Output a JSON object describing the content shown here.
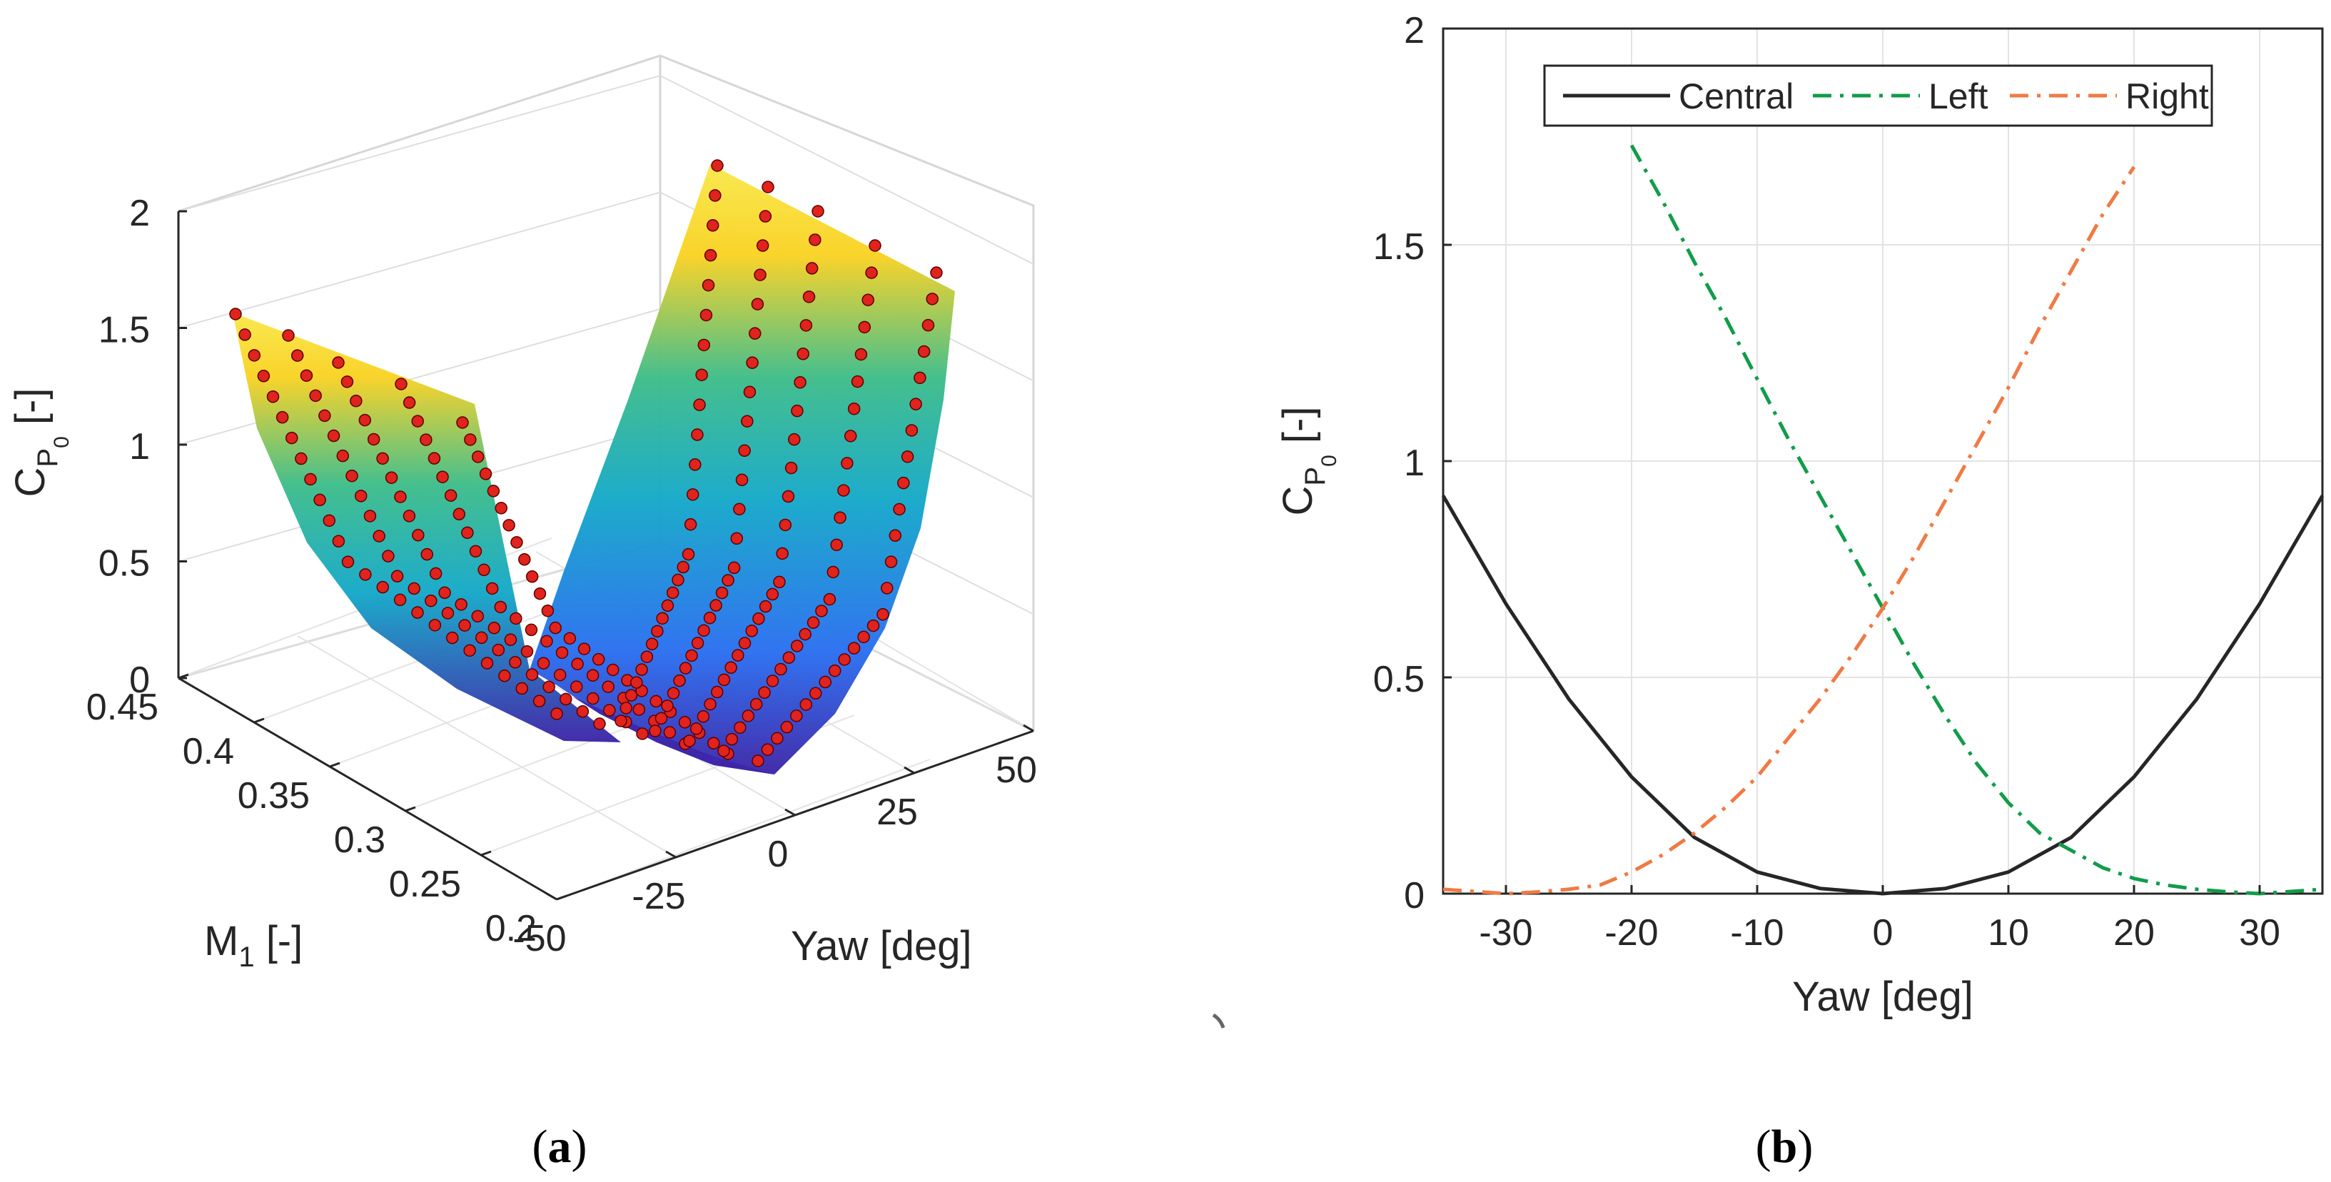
{
  "chart_data": [
    {
      "panel": "(a)",
      "type": "surface3d",
      "x_axis": {
        "label": "Yaw [deg]",
        "ticks": [
          -50,
          -25,
          0,
          25,
          50
        ],
        "range": [
          -50,
          50
        ]
      },
      "y_axis": {
        "label_main": "M",
        "label_sub": "1",
        "label_tail": " [-]",
        "ticks": [
          0.2,
          0.25,
          0.3,
          0.35,
          0.4,
          0.45
        ],
        "range": [
          0.2,
          0.45
        ]
      },
      "z_axis": {
        "label_main": "C",
        "label_sub": "P",
        "label_subsub": "0",
        "label_tail": " [-]",
        "ticks": [
          0,
          0.5,
          1,
          1.5,
          2
        ],
        "range": [
          0,
          2
        ]
      },
      "colormap": [
        "#3e26a8",
        "#2b6ff0",
        "#16a9c9",
        "#3fbd8a",
        "#b5c438",
        "#f9d224",
        "#f9e84b"
      ],
      "marker_color": "#e0231c",
      "grid": true
    },
    {
      "panel": "(b)",
      "type": "line",
      "x_axis": {
        "label": "Yaw [deg]",
        "ticks": [
          -30,
          -20,
          -10,
          0,
          10,
          20,
          30
        ],
        "range": [
          -35,
          35
        ]
      },
      "y_axis": {
        "label_main": "C",
        "label_sub": "P",
        "label_subsub": "0",
        "label_tail": " [-]",
        "ticks": [
          0,
          0.5,
          1,
          1.5,
          2
        ],
        "range": [
          0,
          2
        ]
      },
      "grid": true,
      "legend_position": "top",
      "series": [
        {
          "name": "Central",
          "color": "#262626",
          "dash": "solid",
          "x": [
            -35,
            -30,
            -25,
            -20,
            -15,
            -10,
            -5,
            0,
            5,
            10,
            15,
            20,
            25,
            30,
            35
          ],
          "y": [
            0.92,
            0.67,
            0.45,
            0.27,
            0.13,
            0.05,
            0.012,
            0.0,
            0.012,
            0.05,
            0.13,
            0.27,
            0.45,
            0.67,
            0.92
          ]
        },
        {
          "name": "Left",
          "color": "#119c4a",
          "dash": "dashdot",
          "x": [
            -20,
            -17.5,
            -15,
            -12.5,
            -10,
            -7.5,
            -5,
            -2.5,
            0,
            2.5,
            5,
            7.5,
            10,
            12.5,
            15,
            17.5,
            20,
            22.5,
            25,
            27.5,
            30,
            35
          ],
          "y": [
            1.73,
            1.6,
            1.46,
            1.33,
            1.19,
            1.05,
            0.92,
            0.79,
            0.66,
            0.53,
            0.41,
            0.3,
            0.21,
            0.14,
            0.1,
            0.06,
            0.035,
            0.02,
            0.01,
            0.004,
            0.0,
            0.01
          ]
        },
        {
          "name": "Right",
          "color": "#f07a45",
          "dash": "dashdot",
          "x": [
            -35,
            -30,
            -27.5,
            -25,
            -22.5,
            -20,
            -17.5,
            -15,
            -12.5,
            -10,
            -7.5,
            -5,
            -2.5,
            0,
            2.5,
            5,
            7.5,
            10,
            12.5,
            15,
            17.5,
            20
          ],
          "y": [
            0.01,
            0.0,
            0.004,
            0.01,
            0.02,
            0.05,
            0.09,
            0.14,
            0.2,
            0.27,
            0.36,
            0.45,
            0.55,
            0.66,
            0.78,
            0.91,
            1.04,
            1.17,
            1.31,
            1.44,
            1.57,
            1.68
          ]
        }
      ]
    }
  ],
  "captions": {
    "a_open": "(",
    "a_letter": "a",
    "a_close": ")",
    "b_open": "(",
    "b_letter": "b",
    "b_close": ")"
  }
}
